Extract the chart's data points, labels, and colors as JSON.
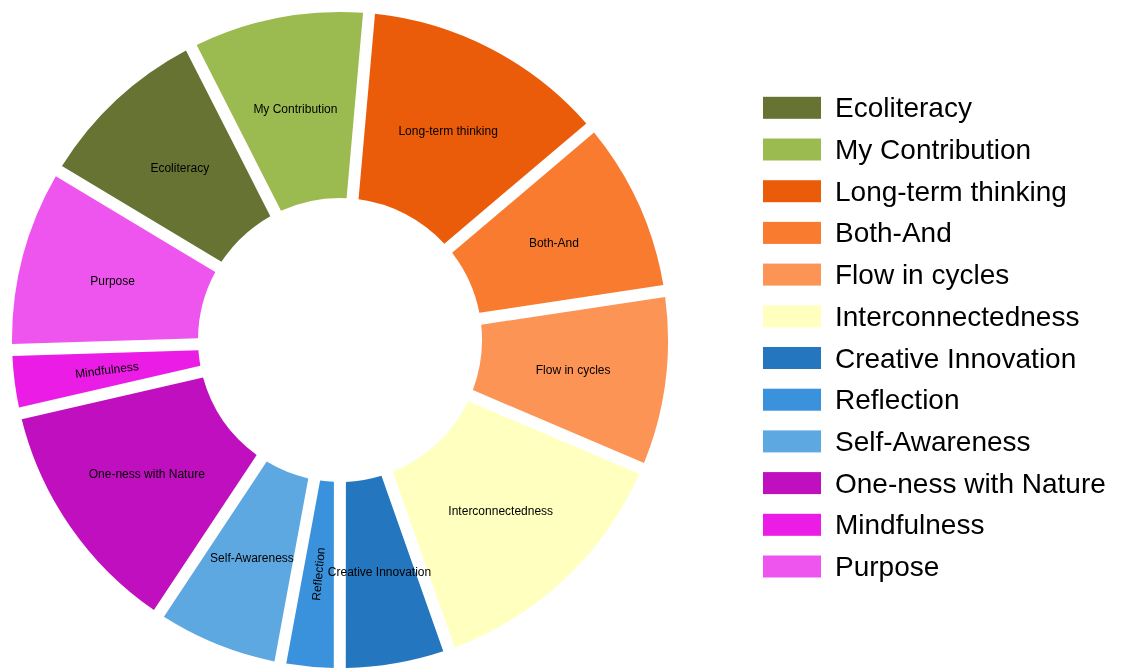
{
  "chart_data": {
    "type": "donut",
    "categories": [
      "Ecoliteracy",
      "My Contribution",
      "Long-term thinking",
      "Both-And",
      "Flow in cycles",
      "Interconnectedness",
      "Creative Innovation",
      "Reflection",
      "Self-Awareness",
      "One-ness with Nature",
      "Mindfulness",
      "Purpose"
    ],
    "values": [
      8.9,
      8.9,
      12.4,
      8.8,
      8.8,
      13.2,
      5.4,
      2.9,
      6.4,
      12.1,
      3.1,
      9.1
    ],
    "colors": [
      "#667333",
      "#9bbb50",
      "#eb5c0a",
      "#f97b30",
      "#fb9455",
      "#ffffc0",
      "#2476be",
      "#3a92dc",
      "#5ea8e1",
      "#bf0fbf",
      "#ea1ce6",
      "#ee55ee"
    ],
    "legend": "right"
  }
}
